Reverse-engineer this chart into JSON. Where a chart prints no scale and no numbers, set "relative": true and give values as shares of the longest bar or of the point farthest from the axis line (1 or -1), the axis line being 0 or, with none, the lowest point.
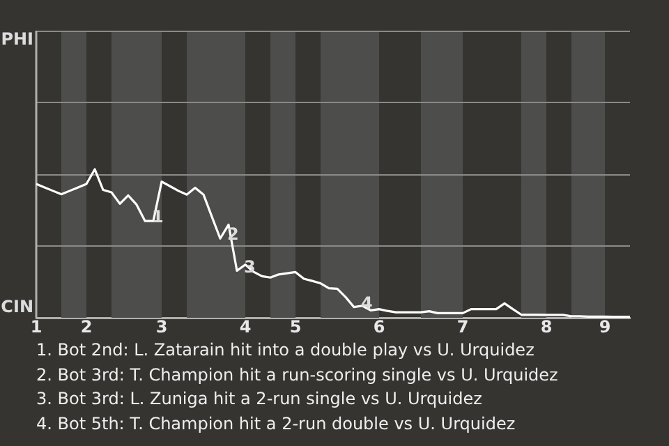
{
  "chart_data": {
    "type": "line",
    "relative": true,
    "categories": [
      "1",
      null,
      null,
      null,
      null,
      null,
      "2",
      null,
      null,
      null,
      null,
      null,
      null,
      null,
      null,
      "3",
      null,
      null,
      null,
      null,
      null,
      null,
      null,
      null,
      null,
      "4",
      null,
      null,
      null,
      null,
      null,
      "5",
      null,
      null,
      null,
      null,
      null,
      null,
      null,
      null,
      null,
      "6",
      null,
      null,
      null,
      null,
      null,
      null,
      null,
      null,
      null,
      "7",
      null,
      null,
      null,
      null,
      null,
      null,
      null,
      null,
      null,
      "8",
      null,
      null,
      null,
      null,
      null,
      null,
      "9",
      null,
      null,
      null
    ],
    "series": [
      {
        "color": "#ffffff",
        "values": [
          0.901,
          0.878,
          0.855,
          0.832,
          0.855,
          0.878,
          0.901,
          1,
          0.861,
          0.845,
          0.768,
          0.824,
          0.762,
          0.652,
          0.652,
          0.917,
          0.886,
          0.855,
          0.83,
          0.876,
          0.83,
          0.681,
          0.534,
          0.627,
          0.317,
          0.358,
          0.309,
          0.28,
          0.271,
          0.292,
          0.3,
          0.308,
          0.263,
          0.248,
          0.232,
          0.199,
          0.195,
          0.139,
          0.072,
          0.081,
          0.05,
          0.058,
          0.046,
          0.037,
          0.037,
          0.037,
          0.037,
          0.044,
          0.031,
          0.031,
          0.031,
          0.031,
          0.058,
          0.058,
          0.058,
          0.058,
          0.097,
          0.058,
          0.021,
          0.021,
          0.021,
          0.019,
          0.019,
          0.019,
          0.01,
          0.01,
          0.008,
          0.008,
          0.008,
          0.006,
          0.006,
          0.006
        ]
      }
    ],
    "ref_lines": [
      {
        "axis": "y",
        "value": 0.484,
        "color": "#8a8a88"
      },
      {
        "axis": "y",
        "value": 0.967,
        "color": "#8a8a88"
      },
      {
        "axis": "y",
        "value": 1.451,
        "color": "#8a8a88"
      }
    ],
    "legend": false,
    "marker": "none",
    "line_style": "solid",
    "annotations": [
      "PHI",
      "CIN",
      {
        "text": "1",
        "y": 0.652
      },
      {
        "text": "2",
        "y": 0.534
      },
      {
        "text": "3",
        "y": 0.317
      },
      {
        "text": "4",
        "y": 0.072
      },
      "1. Bot 2nd: L. Zatarain hit into a double play vs U. Urquidez",
      "2. Bot 3rd: T. Champion hit a run-scoring single vs U. Urquidez",
      "3. Bot 3rd: L. Zuniga hit a 2-run single vs U. Urquidez",
      "4. Bot 5th: T. Champion hit a 2-run double vs U. Urquidez"
    ]
  }
}
